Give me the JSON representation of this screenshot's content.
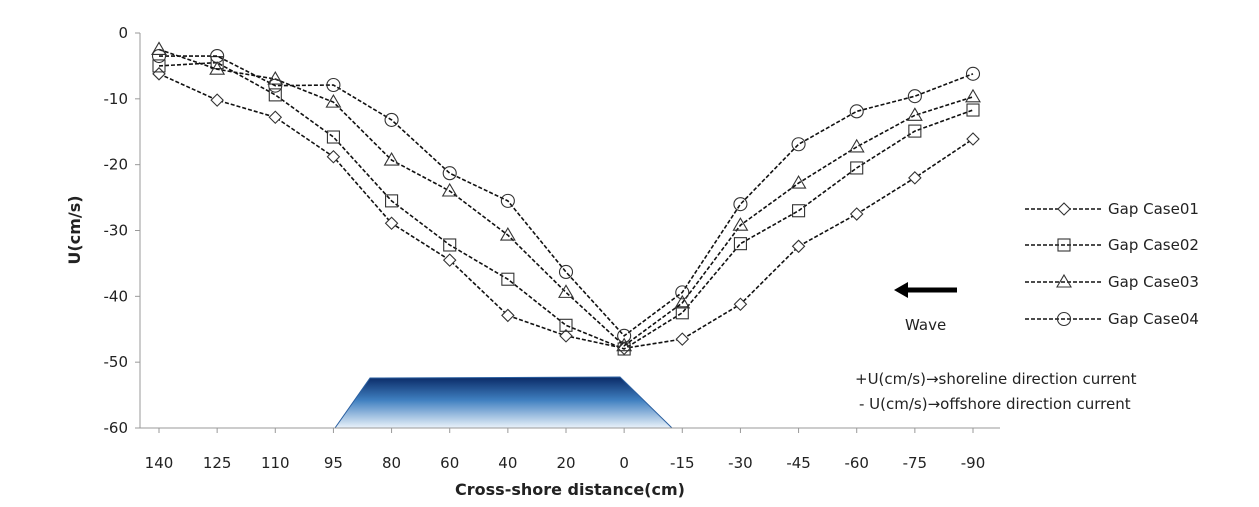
{
  "chart_data": {
    "type": "line",
    "xlabel": "Cross-shore distance(cm)",
    "ylabel": "U(cm/s)",
    "ylim": [
      -60,
      0
    ],
    "yticks": [
      0,
      -10,
      -20,
      -30,
      -40,
      -50,
      -60
    ],
    "categories": [
      "140",
      "125",
      "110",
      "95",
      "80",
      "60",
      "40",
      "20",
      "0",
      "-15",
      "-30",
      "-45",
      "-60",
      "-75",
      "-90"
    ],
    "series": [
      {
        "name": "Gap Case01",
        "marker": "diamond",
        "values": [
          -6.2,
          -10.2,
          -12.8,
          -18.8,
          -28.9,
          -34.5,
          -42.9,
          -46,
          -47.9,
          -46.5,
          -41.2,
          -32.4,
          -27.5,
          -22,
          -16.1
        ]
      },
      {
        "name": "Gap Case02",
        "marker": "square",
        "values": [
          -5,
          -4.5,
          -9.4,
          -15.8,
          -25.5,
          -32.2,
          -37.4,
          -44.4,
          -48,
          -42.5,
          -32,
          -27,
          -20.5,
          -14.9,
          -11.7
        ]
      },
      {
        "name": "Gap Case03",
        "marker": "triangle",
        "values": [
          -2.5,
          -5.5,
          -7,
          -10.5,
          -19.3,
          -24,
          -30.7,
          -39.4,
          -47.5,
          -41,
          -29.2,
          -22.8,
          -17.3,
          -12.5,
          -9.7
        ]
      },
      {
        "name": "Gap Case04",
        "marker": "circle",
        "values": [
          -3.5,
          -3.5,
          -8,
          -7.9,
          -13.2,
          -21.3,
          -25.5,
          -36.3,
          -46,
          -39.4,
          -26,
          -16.9,
          -11.9,
          -9.6,
          -6.2
        ]
      }
    ],
    "legend_position": "right",
    "annotations": {
      "wave": "Wave",
      "note_pos": "+U(cm/s)→shoreline direction current",
      "note_neg": "- U(cm/s)→offshore direction current"
    },
    "grid": false
  }
}
